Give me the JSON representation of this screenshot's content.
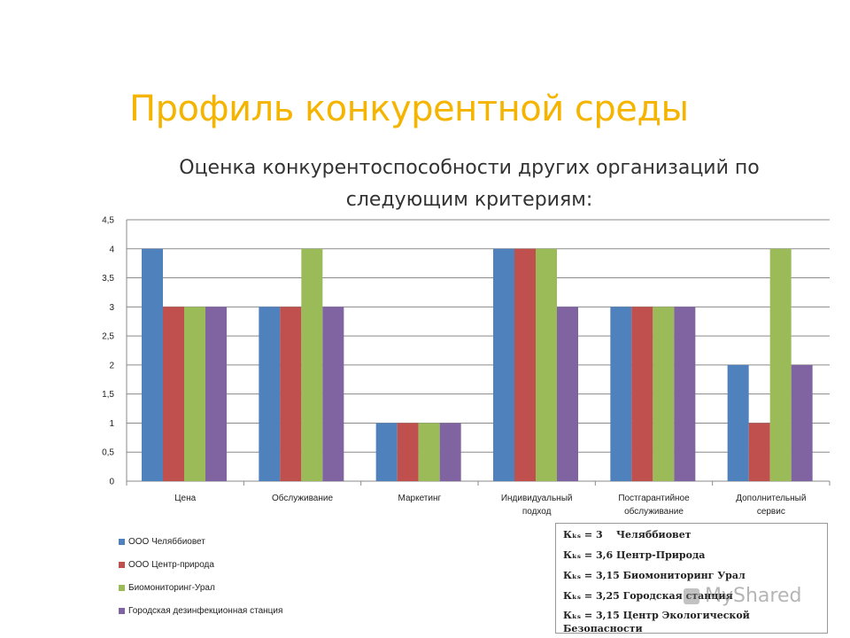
{
  "slide_title": "Профиль конкурентной среды",
  "chart_data": {
    "type": "bar",
    "title": "Оценка конкурентоспособности других организаций по следующим критериям:",
    "categories": [
      [
        "Цена"
      ],
      [
        "Обслуживание"
      ],
      [
        "Маркетинг"
      ],
      [
        "Индивидуальный",
        "подход"
      ],
      [
        "Постгарантийное",
        "обслуживание"
      ],
      [
        "Дополнительный",
        "сервис"
      ]
    ],
    "series": [
      {
        "name": "ООО Челяббиовет",
        "color": "#4f81bd",
        "values": [
          4,
          3,
          1,
          4,
          3,
          2
        ]
      },
      {
        "name": "ООО Центр-природа",
        "color": "#c0504d",
        "values": [
          3,
          3,
          1,
          4,
          3,
          1
        ]
      },
      {
        "name": "Биомониторинг-Урал",
        "color": "#9bbb59",
        "values": [
          3,
          4,
          1,
          4,
          3,
          4
        ]
      },
      {
        "name": "Городская дезинфекционная станция",
        "color": "#8064a2",
        "values": [
          3,
          3,
          1,
          3,
          3,
          2
        ]
      }
    ],
    "ylim": [
      0,
      4.5
    ],
    "yticks": [
      "0",
      "0,5",
      "1",
      "1,5",
      "2",
      "2,5",
      "3",
      "3,5",
      "4",
      "4,5"
    ],
    "grid": true,
    "legend_position": "bottom-left"
  },
  "info_box": {
    "lines": [
      "Кₖₛ = 3    Челяббиовет",
      "Кₖₛ = 3,6 Центр-Природа",
      "Кₖₛ = 3,15 Биомониторинг Урал",
      "Кₖₛ = 3,25 Городская станция",
      "Кₖₛ = 3,15 Центр Экологической Безопасности"
    ]
  },
  "watermark": "MyShared"
}
